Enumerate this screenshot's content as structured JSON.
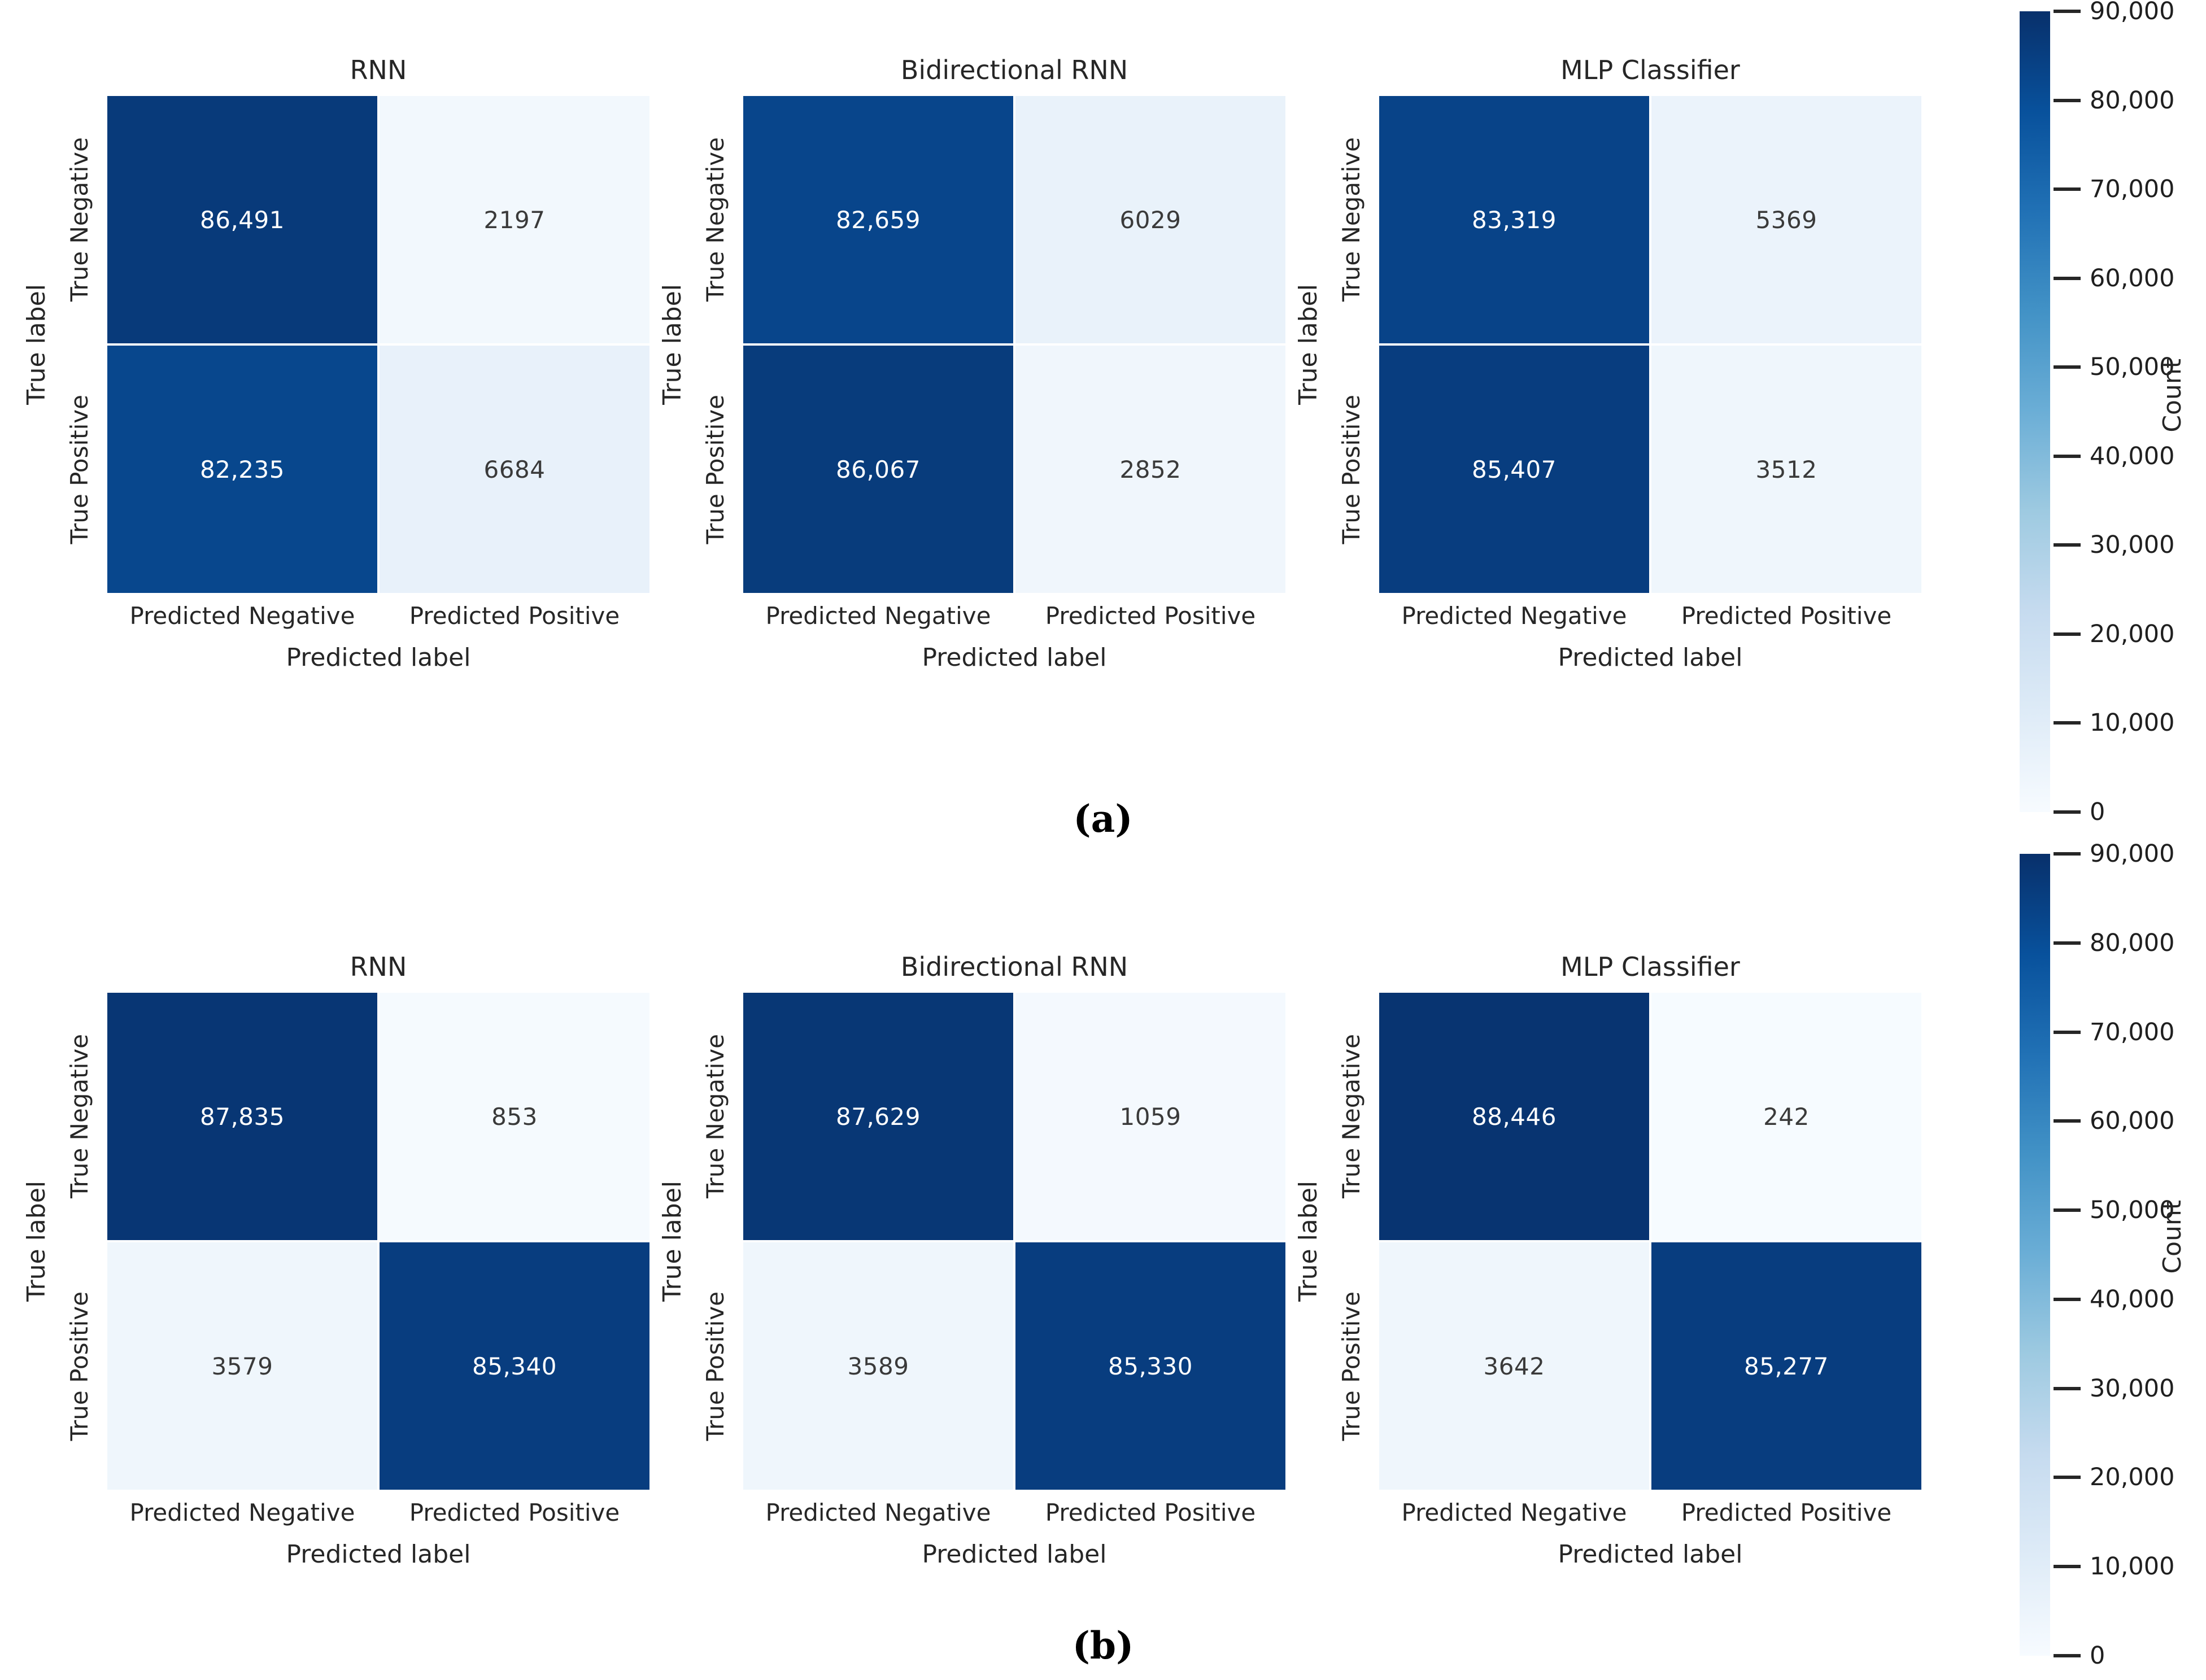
{
  "axis": {
    "ylabel": "True label",
    "xlabel": "Predicted label",
    "yticks": [
      "True Negative",
      "True Positive"
    ],
    "xticks": [
      "Predicted Negative",
      "Predicted Positive"
    ]
  },
  "colorbar": {
    "label": "Count",
    "vmin": 0,
    "vmax": 90000,
    "colormap": "Blues",
    "gradient_top_to_bottom": [
      "#08306b",
      "#08519c",
      "#2171b5",
      "#4292c6",
      "#6baed6",
      "#9ecae1",
      "#c6dbef",
      "#deebf7",
      "#f7fbff"
    ],
    "ticks": [
      {
        "label": "90,000",
        "value": 90000
      },
      {
        "label": "80,000",
        "value": 80000
      },
      {
        "label": "70,000",
        "value": 70000
      },
      {
        "label": "60,000",
        "value": 60000
      },
      {
        "label": "50,000",
        "value": 50000
      },
      {
        "label": "40,000",
        "value": 40000
      },
      {
        "label": "30,000",
        "value": 30000
      },
      {
        "label": "20,000",
        "value": 20000
      },
      {
        "label": "10,000",
        "value": 10000
      },
      {
        "label": "0",
        "value": 0
      }
    ]
  },
  "panels": [
    {
      "caption": "(a)",
      "matrices": [
        {
          "title": "RNN",
          "rows": [
            [
              {
                "display": "86,491",
                "value": 86491,
                "bg": "#083a7a",
                "fg": "#ffffff"
              },
              {
                "display": "2197",
                "value": 2197,
                "bg": "#f2f8fd",
                "fg": "#3a3a3a"
              }
            ],
            [
              {
                "display": "82,235",
                "value": 82235,
                "bg": "#08478d",
                "fg": "#ffffff"
              },
              {
                "display": "6684",
                "value": 6684,
                "bg": "#e8f1fa",
                "fg": "#3a3a3a"
              }
            ]
          ]
        },
        {
          "title": "Bidirectional RNN",
          "rows": [
            [
              {
                "display": "82,659",
                "value": 82659,
                "bg": "#08458b",
                "fg": "#ffffff"
              },
              {
                "display": "6029",
                "value": 6029,
                "bg": "#e9f2fa",
                "fg": "#3a3a3a"
              }
            ],
            [
              {
                "display": "86,067",
                "value": 86067,
                "bg": "#083c7c",
                "fg": "#ffffff"
              },
              {
                "display": "2852",
                "value": 2852,
                "bg": "#f0f6fc",
                "fg": "#3a3a3a"
              }
            ]
          ]
        },
        {
          "title": "MLP Classifier",
          "rows": [
            [
              {
                "display": "83,319",
                "value": 83319,
                "bg": "#084388",
                "fg": "#ffffff"
              },
              {
                "display": "5369",
                "value": 5369,
                "bg": "#ebf3fb",
                "fg": "#3a3a3a"
              }
            ],
            [
              {
                "display": "85,407",
                "value": 85407,
                "bg": "#083d7f",
                "fg": "#ffffff"
              },
              {
                "display": "3512",
                "value": 3512,
                "bg": "#eff6fc",
                "fg": "#3a3a3a"
              }
            ]
          ]
        }
      ]
    },
    {
      "caption": "(b)",
      "matrices": [
        {
          "title": "RNN",
          "rows": [
            [
              {
                "display": "87,835",
                "value": 87835,
                "bg": "#083674",
                "fg": "#ffffff"
              },
              {
                "display": "853",
                "value": 853,
                "bg": "#f5fafe",
                "fg": "#3a3a3a"
              }
            ],
            [
              {
                "display": "3579",
                "value": 3579,
                "bg": "#eff6fc",
                "fg": "#3a3a3a"
              },
              {
                "display": "85,340",
                "value": 85340,
                "bg": "#083d7f",
                "fg": "#ffffff"
              }
            ]
          ]
        },
        {
          "title": "Bidirectional RNN",
          "rows": [
            [
              {
                "display": "87,629",
                "value": 87629,
                "bg": "#083775",
                "fg": "#ffffff"
              },
              {
                "display": "1059",
                "value": 1059,
                "bg": "#f4f9fe",
                "fg": "#3a3a3a"
              }
            ],
            [
              {
                "display": "3589",
                "value": 3589,
                "bg": "#eff6fc",
                "fg": "#3a3a3a"
              },
              {
                "display": "85,330",
                "value": 85330,
                "bg": "#083d7f",
                "fg": "#ffffff"
              }
            ]
          ]
        },
        {
          "title": "MLP Classifier",
          "rows": [
            [
              {
                "display": "88,446",
                "value": 88446,
                "bg": "#083471",
                "fg": "#ffffff"
              },
              {
                "display": "242",
                "value": 242,
                "bg": "#f6fbff",
                "fg": "#3a3a3a"
              }
            ],
            [
              {
                "display": "3642",
                "value": 3642,
                "bg": "#eff6fc",
                "fg": "#3a3a3a"
              },
              {
                "display": "85,277",
                "value": 85277,
                "bg": "#083d7f",
                "fg": "#ffffff"
              }
            ]
          ]
        }
      ]
    }
  ],
  "chart_data": [
    {
      "type": "heatmap",
      "panel": "a",
      "title": "RNN",
      "x_categories": [
        "Predicted Negative",
        "Predicted Positive"
      ],
      "y_categories": [
        "True Negative",
        "True Positive"
      ],
      "values": [
        [
          86491,
          2197
        ],
        [
          82235,
          6684
        ]
      ],
      "xlabel": "Predicted label",
      "ylabel": "True label",
      "colormap": "Blues",
      "vmin": 0,
      "vmax": 90000,
      "colorbar_label": "Count"
    },
    {
      "type": "heatmap",
      "panel": "a",
      "title": "Bidirectional RNN",
      "x_categories": [
        "Predicted Negative",
        "Predicted Positive"
      ],
      "y_categories": [
        "True Negative",
        "True Positive"
      ],
      "values": [
        [
          82659,
          6029
        ],
        [
          86067,
          2852
        ]
      ],
      "xlabel": "Predicted label",
      "ylabel": "True label",
      "colormap": "Blues",
      "vmin": 0,
      "vmax": 90000,
      "colorbar_label": "Count"
    },
    {
      "type": "heatmap",
      "panel": "a",
      "title": "MLP Classifier",
      "x_categories": [
        "Predicted Negative",
        "Predicted Positive"
      ],
      "y_categories": [
        "True Negative",
        "True Positive"
      ],
      "values": [
        [
          83319,
          5369
        ],
        [
          85407,
          3512
        ]
      ],
      "xlabel": "Predicted label",
      "ylabel": "True label",
      "colormap": "Blues",
      "vmin": 0,
      "vmax": 90000,
      "colorbar_label": "Count"
    },
    {
      "type": "heatmap",
      "panel": "b",
      "title": "RNN",
      "x_categories": [
        "Predicted Negative",
        "Predicted Positive"
      ],
      "y_categories": [
        "True Negative",
        "True Positive"
      ],
      "values": [
        [
          87835,
          853
        ],
        [
          3579,
          85340
        ]
      ],
      "xlabel": "Predicted label",
      "ylabel": "True label",
      "colormap": "Blues",
      "vmin": 0,
      "vmax": 90000,
      "colorbar_label": "Count"
    },
    {
      "type": "heatmap",
      "panel": "b",
      "title": "Bidirectional RNN",
      "x_categories": [
        "Predicted Negative",
        "Predicted Positive"
      ],
      "y_categories": [
        "True Negative",
        "True Positive"
      ],
      "values": [
        [
          87629,
          1059
        ],
        [
          3589,
          85330
        ]
      ],
      "xlabel": "Predicted label",
      "ylabel": "True label",
      "colormap": "Blues",
      "vmin": 0,
      "vmax": 90000,
      "colorbar_label": "Count"
    },
    {
      "type": "heatmap",
      "panel": "b",
      "title": "MLP Classifier",
      "x_categories": [
        "Predicted Negative",
        "Predicted Positive"
      ],
      "y_categories": [
        "True Negative",
        "True Positive"
      ],
      "values": [
        [
          88446,
          242
        ],
        [
          3642,
          85277
        ]
      ],
      "xlabel": "Predicted label",
      "ylabel": "True label",
      "colormap": "Blues",
      "vmin": 0,
      "vmax": 90000,
      "colorbar_label": "Count"
    }
  ]
}
